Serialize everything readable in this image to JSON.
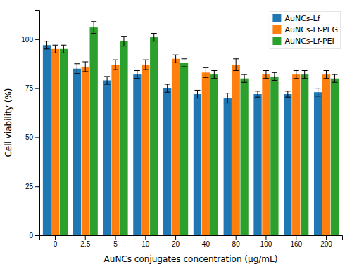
{
  "chart_data": {
    "type": "bar",
    "categories": [
      "0",
      "2.5",
      "5",
      "10",
      "20",
      "40",
      "80",
      "100",
      "160",
      "200"
    ],
    "series": [
      {
        "name": "AuNCs-Lf",
        "values": [
          97,
          85,
          79,
          82,
          75,
          72,
          70,
          72,
          72,
          73
        ],
        "errors": [
          2.0,
          2.5,
          2.0,
          2.0,
          2.0,
          2.0,
          2.5,
          1.5,
          1.5,
          2.0
        ]
      },
      {
        "name": "AuNCs-Lf-PEG",
        "values": [
          95,
          86,
          87,
          87,
          90,
          83,
          87,
          82,
          82,
          82
        ],
        "errors": [
          2.0,
          2.5,
          2.5,
          2.5,
          2.0,
          2.5,
          3.0,
          2.0,
          2.0,
          2.0
        ]
      },
      {
        "name": "AuNCs-Lf-PEI",
        "values": [
          95,
          106,
          99,
          101,
          88,
          82,
          80,
          81,
          82,
          80
        ],
        "errors": [
          2.0,
          3.0,
          2.5,
          2.0,
          2.0,
          2.0,
          2.0,
          2.0,
          2.0,
          2.0
        ]
      }
    ],
    "xlabel": "AuNCs conjugates concentration (μg/mL)",
    "ylabel": "Cell viability (%)",
    "ylim": [
      0,
      115
    ],
    "yticks": [
      0,
      25,
      50,
      75,
      100
    ],
    "grid": false,
    "legend": "upper right"
  }
}
